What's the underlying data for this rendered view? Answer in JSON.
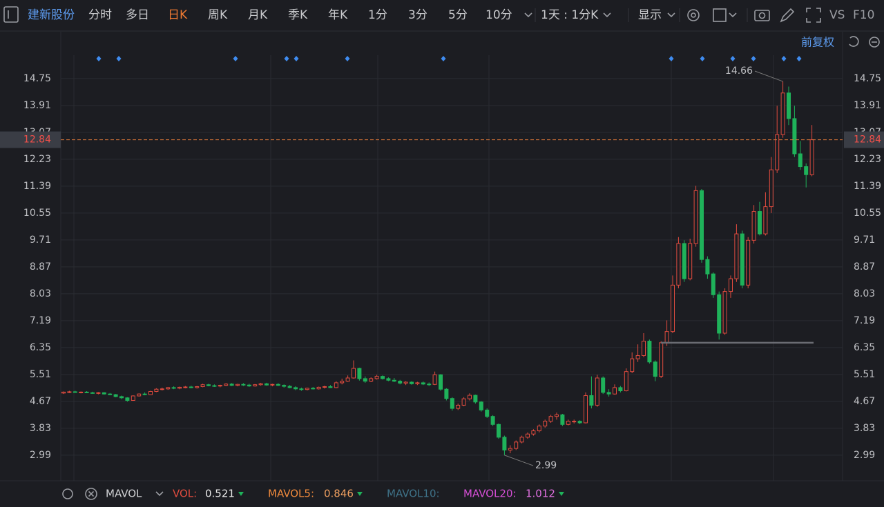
{
  "toolbar": {
    "stock_name": "建新股份",
    "periods": [
      "分时",
      "多日",
      "日K",
      "周K",
      "月K",
      "季K",
      "年K",
      "1分",
      "3分",
      "5分",
      "10分"
    ],
    "interval": "1天 : 1分K",
    "display": "显示",
    "vs": "VS",
    "f10": "F10"
  },
  "adjustment": "前复权",
  "chart_data": {
    "type": "candlestick",
    "up_color": "#e24c3f",
    "down_color": "#1fb25a",
    "ylim": [
      2.19,
      15.48
    ],
    "yticks": [
      14.75,
      13.91,
      13.07,
      12.23,
      11.39,
      10.55,
      9.71,
      8.87,
      8.03,
      7.19,
      6.35,
      5.51,
      4.67,
      3.83,
      2.99
    ],
    "grid": true,
    "last_price": 12.84,
    "max_price": 14.66,
    "min_price": 2.99,
    "support_line": 6.5,
    "candles": [
      [
        4.93,
        4.98,
        4.9,
        4.96
      ],
      [
        4.96,
        5.0,
        4.93,
        4.97
      ],
      [
        4.97,
        5.0,
        4.94,
        4.95
      ],
      [
        4.95,
        4.98,
        4.92,
        4.96
      ],
      [
        4.96,
        4.99,
        4.93,
        4.94
      ],
      [
        4.94,
        4.97,
        4.91,
        4.93
      ],
      [
        4.93,
        4.96,
        4.89,
        4.94
      ],
      [
        4.94,
        4.96,
        4.88,
        4.9
      ],
      [
        4.9,
        4.93,
        4.86,
        4.88
      ],
      [
        4.88,
        4.9,
        4.8,
        4.82
      ],
      [
        4.82,
        4.85,
        4.74,
        4.78
      ],
      [
        4.78,
        4.8,
        4.66,
        4.7
      ],
      [
        4.7,
        4.86,
        4.69,
        4.84
      ],
      [
        4.84,
        4.92,
        4.82,
        4.9
      ],
      [
        4.9,
        4.95,
        4.86,
        4.88
      ],
      [
        4.88,
        5.0,
        4.87,
        4.98
      ],
      [
        4.98,
        5.08,
        4.96,
        5.05
      ],
      [
        5.05,
        5.1,
        5.01,
        5.06
      ],
      [
        5.06,
        5.12,
        5.03,
        5.1
      ],
      [
        5.1,
        5.14,
        5.05,
        5.08
      ],
      [
        5.08,
        5.13,
        5.05,
        5.11
      ],
      [
        5.11,
        5.15,
        5.08,
        5.12
      ],
      [
        5.12,
        5.16,
        5.08,
        5.1
      ],
      [
        5.1,
        5.15,
        5.07,
        5.13
      ],
      [
        5.13,
        5.22,
        5.11,
        5.19
      ],
      [
        5.19,
        5.22,
        5.14,
        5.16
      ],
      [
        5.16,
        5.2,
        5.12,
        5.15
      ],
      [
        5.15,
        5.19,
        5.11,
        5.17
      ],
      [
        5.17,
        5.24,
        5.15,
        5.21
      ],
      [
        5.21,
        5.24,
        5.15,
        5.17
      ],
      [
        5.17,
        5.22,
        5.14,
        5.2
      ],
      [
        5.2,
        5.24,
        5.15,
        5.18
      ],
      [
        5.18,
        5.22,
        5.12,
        5.15
      ],
      [
        5.15,
        5.21,
        5.13,
        5.19
      ],
      [
        5.19,
        5.25,
        5.16,
        5.22
      ],
      [
        5.22,
        5.25,
        5.16,
        5.18
      ],
      [
        5.18,
        5.22,
        5.14,
        5.2
      ],
      [
        5.2,
        5.24,
        5.15,
        5.17
      ],
      [
        5.17,
        5.2,
        5.1,
        5.14
      ],
      [
        5.14,
        5.18,
        5.08,
        5.1
      ],
      [
        5.1,
        5.14,
        5.02,
        5.06
      ],
      [
        5.06,
        5.1,
        5.0,
        5.04
      ],
      [
        5.04,
        5.1,
        5.01,
        5.08
      ],
      [
        5.08,
        5.12,
        5.04,
        5.06
      ],
      [
        5.06,
        5.13,
        5.04,
        5.11
      ],
      [
        5.11,
        5.16,
        5.07,
        5.13
      ],
      [
        5.13,
        5.18,
        5.09,
        5.1
      ],
      [
        5.1,
        5.3,
        5.08,
        5.25
      ],
      [
        5.25,
        5.38,
        5.2,
        5.3
      ],
      [
        5.3,
        5.48,
        5.28,
        5.4
      ],
      [
        5.4,
        5.95,
        5.38,
        5.7
      ],
      [
        5.7,
        5.72,
        5.32,
        5.38
      ],
      [
        5.38,
        5.45,
        5.25,
        5.3
      ],
      [
        5.3,
        5.42,
        5.27,
        5.38
      ],
      [
        5.38,
        5.5,
        5.35,
        5.45
      ],
      [
        5.45,
        5.48,
        5.35,
        5.38
      ],
      [
        5.38,
        5.42,
        5.3,
        5.33
      ],
      [
        5.33,
        5.4,
        5.27,
        5.3
      ],
      [
        5.3,
        5.34,
        5.2,
        5.24
      ],
      [
        5.24,
        5.3,
        5.18,
        5.27
      ],
      [
        5.27,
        5.3,
        5.19,
        5.22
      ],
      [
        5.22,
        5.28,
        5.18,
        5.25
      ],
      [
        5.25,
        5.29,
        5.18,
        5.21
      ],
      [
        5.21,
        5.26,
        5.15,
        5.2
      ],
      [
        5.2,
        5.6,
        5.18,
        5.5
      ],
      [
        5.5,
        5.52,
        5.0,
        5.05
      ],
      [
        5.05,
        5.08,
        4.7,
        4.76
      ],
      [
        4.76,
        4.8,
        4.38,
        4.45
      ],
      [
        4.45,
        4.6,
        4.4,
        4.55
      ],
      [
        4.55,
        4.8,
        4.52,
        4.75
      ],
      [
        4.75,
        4.92,
        4.7,
        4.86
      ],
      [
        4.86,
        4.88,
        4.6,
        4.65
      ],
      [
        4.65,
        4.68,
        4.35,
        4.4
      ],
      [
        4.4,
        4.45,
        4.15,
        4.2
      ],
      [
        4.2,
        4.24,
        3.9,
        3.95
      ],
      [
        3.95,
        3.98,
        3.5,
        3.55
      ],
      [
        3.55,
        3.6,
        2.99,
        3.15
      ],
      [
        3.15,
        3.3,
        3.05,
        3.2
      ],
      [
        3.2,
        3.45,
        3.15,
        3.4
      ],
      [
        3.4,
        3.6,
        3.36,
        3.55
      ],
      [
        3.55,
        3.7,
        3.5,
        3.65
      ],
      [
        3.65,
        3.8,
        3.6,
        3.75
      ],
      [
        3.75,
        3.95,
        3.7,
        3.9
      ],
      [
        3.9,
        4.1,
        3.85,
        4.05
      ],
      [
        4.05,
        4.25,
        4.0,
        4.2
      ],
      [
        4.2,
        4.32,
        4.1,
        4.25
      ],
      [
        4.25,
        4.28,
        3.9,
        3.95
      ],
      [
        3.95,
        4.1,
        3.92,
        4.05
      ],
      [
        4.05,
        4.1,
        3.98,
        4.05
      ],
      [
        4.05,
        4.08,
        3.96,
        4.0
      ],
      [
        4.0,
        4.95,
        3.98,
        4.85
      ],
      [
        4.85,
        5.45,
        4.45,
        4.55
      ],
      [
        4.55,
        5.5,
        4.5,
        5.4
      ],
      [
        5.4,
        5.45,
        4.9,
        4.95
      ],
      [
        4.95,
        5.05,
        4.82,
        4.9
      ],
      [
        4.9,
        5.2,
        4.88,
        5.1
      ],
      [
        5.1,
        5.15,
        4.95,
        5.0
      ],
      [
        5.0,
        5.7,
        4.98,
        5.6
      ],
      [
        5.6,
        6.2,
        5.55,
        6.0
      ],
      [
        6.0,
        6.45,
        5.9,
        6.1
      ],
      [
        6.1,
        6.8,
        6.05,
        6.55
      ],
      [
        6.55,
        6.6,
        5.85,
        5.9
      ],
      [
        5.9,
        5.95,
        5.3,
        5.45
      ],
      [
        5.45,
        6.55,
        5.4,
        6.5
      ],
      [
        6.5,
        7.2,
        6.4,
        6.85
      ],
      [
        6.85,
        8.6,
        6.8,
        8.3
      ],
      [
        8.3,
        9.8,
        8.2,
        9.6
      ],
      [
        9.6,
        9.7,
        8.4,
        8.5
      ],
      [
        8.5,
        9.75,
        8.45,
        9.6
      ],
      [
        9.6,
        11.4,
        9.5,
        11.25
      ],
      [
        11.25,
        11.3,
        9.0,
        9.1
      ],
      [
        9.1,
        9.2,
        8.5,
        8.65
      ],
      [
        8.65,
        8.7,
        7.9,
        8.0
      ],
      [
        8.0,
        8.1,
        6.6,
        6.8
      ],
      [
        6.8,
        8.2,
        6.75,
        8.1
      ],
      [
        8.1,
        8.6,
        7.9,
        8.5
      ],
      [
        8.5,
        10.2,
        8.4,
        9.9
      ],
      [
        9.9,
        10.0,
        8.2,
        8.3
      ],
      [
        8.3,
        9.8,
        8.2,
        9.7
      ],
      [
        9.7,
        10.8,
        9.6,
        10.6
      ],
      [
        10.6,
        10.9,
        9.85,
        9.9
      ],
      [
        9.9,
        11.2,
        9.85,
        10.75
      ],
      [
        10.75,
        12.3,
        10.55,
        11.9
      ],
      [
        11.9,
        13.9,
        11.8,
        13.0
      ],
      [
        13.0,
        14.66,
        12.9,
        14.3
      ],
      [
        14.3,
        14.5,
        13.3,
        13.5
      ],
      [
        13.5,
        13.9,
        12.3,
        12.4
      ],
      [
        12.4,
        12.8,
        11.9,
        12.0
      ],
      [
        12.0,
        12.1,
        11.35,
        11.75
      ],
      [
        11.75,
        13.3,
        11.7,
        12.84
      ]
    ]
  },
  "indicator_bar": {
    "name": "MAVOL",
    "items": [
      {
        "label": "VOL:",
        "value": 0.521,
        "color": "#e24c3f",
        "value_color": "#e8e8e8"
      },
      {
        "label": "MAVOL5:",
        "value": 0.846,
        "color": "#f08a3c",
        "value_color": "#f0a060"
      },
      {
        "label": "MAVOL10:",
        "color": "#3f7389"
      },
      {
        "label": "MAVOL20:",
        "value": 1.012,
        "color": "#d64fd6",
        "value_color": "#e070e0"
      }
    ]
  }
}
